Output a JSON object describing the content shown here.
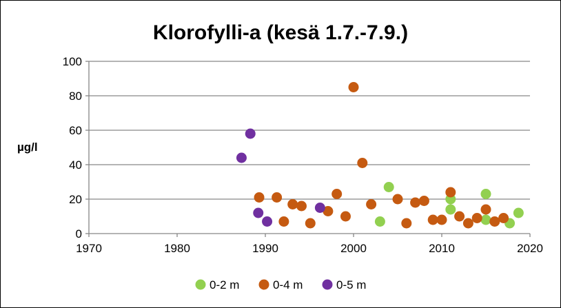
{
  "chart_data": {
    "type": "scatter",
    "title": "Klorofylli-a (kesä 1.7.-7.9.)",
    "ylabel": "µg/l",
    "xlabel": "",
    "xlim": [
      1970,
      2020
    ],
    "ylim": [
      0,
      100
    ],
    "xticks": [
      1970,
      1980,
      1990,
      2000,
      2010,
      2020
    ],
    "yticks": [
      0,
      20,
      40,
      60,
      80,
      100
    ],
    "grid": "horizontal",
    "legend_position": "bottom",
    "series": [
      {
        "name": "0-2 m",
        "color": "#92d050",
        "points": [
          [
            2003,
            7
          ],
          [
            2004,
            27
          ],
          [
            2011,
            20
          ],
          [
            2011,
            14
          ],
          [
            2015,
            23
          ],
          [
            2015,
            8
          ],
          [
            2017.7,
            6
          ],
          [
            2018.7,
            12
          ]
        ]
      },
      {
        "name": "0-4 m",
        "color": "#c55a11",
        "points": [
          [
            1989.3,
            21
          ],
          [
            1991.3,
            21
          ],
          [
            1992.1,
            7
          ],
          [
            1993.1,
            17
          ],
          [
            1994.1,
            16
          ],
          [
            1995.1,
            6
          ],
          [
            1997.1,
            13
          ],
          [
            1998.1,
            23
          ],
          [
            1999.1,
            10
          ],
          [
            2000,
            85
          ],
          [
            2001,
            41
          ],
          [
            2002,
            17
          ],
          [
            2005,
            20
          ],
          [
            2006,
            6
          ],
          [
            2007,
            18
          ],
          [
            2008,
            19
          ],
          [
            2009,
            8
          ],
          [
            2010,
            8
          ],
          [
            2011,
            24
          ],
          [
            2012,
            10
          ],
          [
            2013,
            6
          ],
          [
            2014,
            9
          ],
          [
            2015,
            14
          ],
          [
            2016,
            7
          ],
          [
            2017,
            9
          ]
        ]
      },
      {
        "name": "0-5 m",
        "color": "#7030a0",
        "points": [
          [
            1987.3,
            44
          ],
          [
            1988.3,
            58
          ],
          [
            1989.2,
            12
          ],
          [
            1990.2,
            7
          ],
          [
            1996.2,
            15
          ]
        ]
      }
    ]
  }
}
